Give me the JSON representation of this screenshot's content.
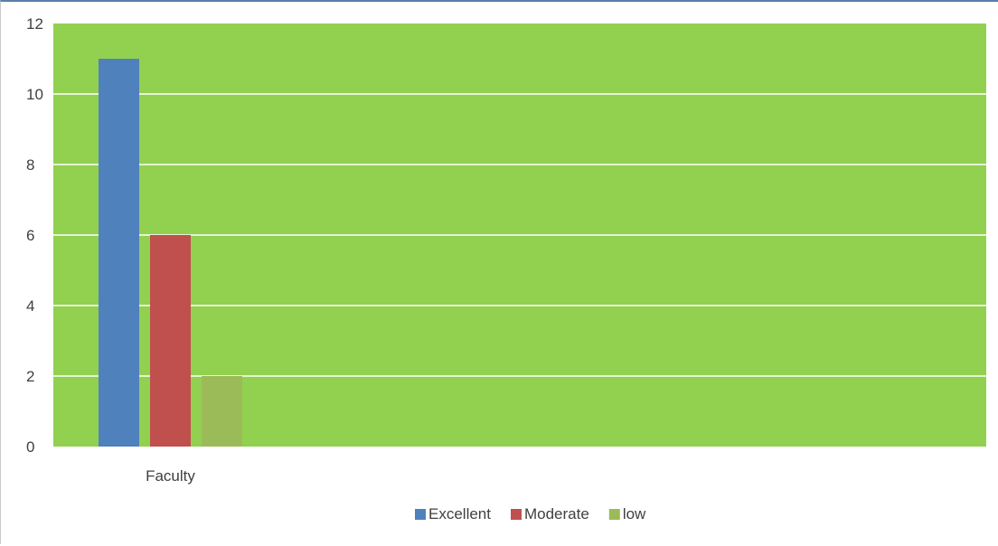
{
  "chart_data": {
    "type": "bar",
    "categories": [
      "Faculty"
    ],
    "series": [
      {
        "name": "Excellent",
        "values": [
          11
        ],
        "color": "#4f81bd"
      },
      {
        "name": "Moderate",
        "values": [
          6
        ],
        "color": "#c0504d"
      },
      {
        "name": "low",
        "values": [
          2
        ],
        "color": "#9bbb59"
      }
    ],
    "ylim": [
      0,
      12
    ],
    "yticks": [
      "0",
      "2",
      "4",
      "6",
      "8",
      "10",
      "12"
    ],
    "grid": true,
    "plot_background": "#92d050",
    "gridline_color": "#ffffff",
    "legend_position": "bottom"
  }
}
